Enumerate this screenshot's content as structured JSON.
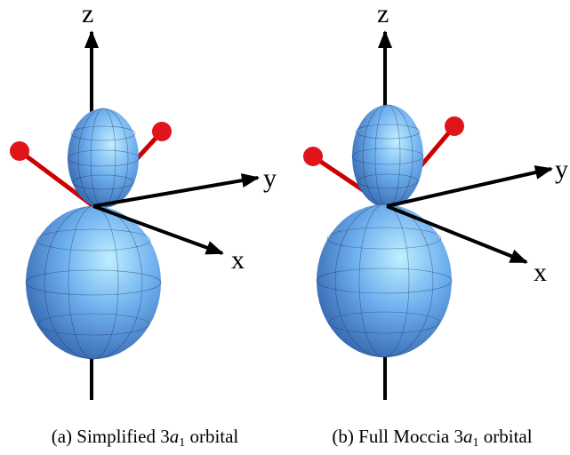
{
  "panels": [
    {
      "axes": {
        "z": "z",
        "y": "y",
        "x": "x"
      },
      "caption": {
        "label": "(a)",
        "before": "Simplified 3",
        "italic": "a",
        "subscript": "1",
        "after": "orbital"
      }
    },
    {
      "axes": {
        "z": "z",
        "y": "y",
        "x": "x"
      },
      "caption": {
        "label": "(b)",
        "before": "Full Moccia 3",
        "italic": "a",
        "subscript": "1",
        "after": "orbital"
      }
    }
  ]
}
